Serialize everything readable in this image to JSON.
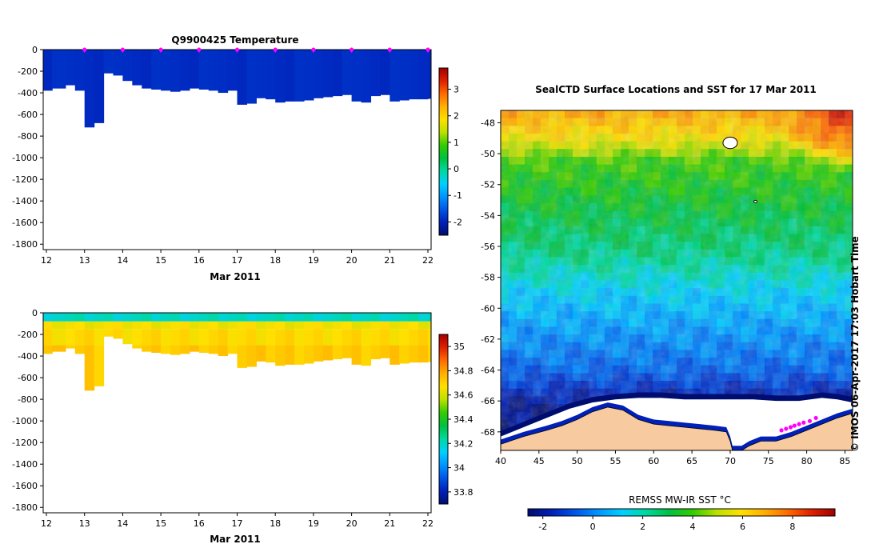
{
  "colors": {
    "ramp": [
      "#000d70",
      "#0020b8",
      "#0055e8",
      "#0095ff",
      "#00d0ff",
      "#00d8a0",
      "#00c040",
      "#33cc00",
      "#bbe000",
      "#ffe000",
      "#ffb000",
      "#ff6a00",
      "#e02000",
      "#a00000"
    ],
    "land": "#f7caa0",
    "ice": "#ffffff",
    "axis": "#000000",
    "marker": "#ff00ff"
  },
  "chart_data": [
    {
      "id": "temperature",
      "type": "heatmap",
      "title": "Q9900425  Temperature",
      "xlabel": "Mar 2011",
      "ylabel": "",
      "xlim": [
        12,
        22
      ],
      "ylim": [
        -1850,
        0
      ],
      "x_ticks": [
        "12",
        "13",
        "14",
        "15",
        "16",
        "17",
        "18",
        "19",
        "20",
        "21",
        "22"
      ],
      "y_ticks": [
        "0",
        "-200",
        "-400",
        "-600",
        "-800",
        "-1000",
        "-1200",
        "-1400",
        "-1600",
        "-1800"
      ],
      "profile_x": [
        11.85,
        12.15,
        12.5,
        12.75,
        13.0,
        13.25,
        13.5,
        13.75,
        14.0,
        14.25,
        14.5,
        14.75,
        15.0,
        15.25,
        15.5,
        15.75,
        16.0,
        16.25,
        16.5,
        16.75,
        17.0,
        17.25,
        17.5,
        17.75,
        18.0,
        18.25,
        18.5,
        18.75,
        19.0,
        19.25,
        19.5,
        19.75,
        20.0,
        20.25,
        20.5,
        20.75,
        21.0,
        21.25,
        21.5,
        21.75,
        22.0
      ],
      "profile_depth": [
        -380,
        -360,
        -330,
        -380,
        -720,
        -680,
        -220,
        -240,
        -290,
        -330,
        -360,
        -370,
        -380,
        -390,
        -380,
        -360,
        -370,
        -380,
        -400,
        -380,
        -510,
        -500,
        -450,
        -460,
        -490,
        -480,
        -480,
        -470,
        -450,
        -440,
        -430,
        -420,
        -480,
        -490,
        -430,
        -420,
        -480,
        -470,
        -460,
        -460,
        -455
      ],
      "surface_markers": [
        13,
        14,
        15,
        16,
        17,
        18,
        19,
        20,
        21,
        22
      ],
      "colorbar": {
        "ticks": [
          "3",
          "2",
          "1",
          "0",
          "-1",
          "-2"
        ],
        "range": [
          -2.5,
          3.8
        ]
      },
      "field_value": -1.9
    },
    {
      "id": "salinity",
      "type": "heatmap",
      "title": "",
      "xlabel": "Mar 2011",
      "ylabel": "",
      "xlim": [
        12,
        22
      ],
      "ylim": [
        -1850,
        0
      ],
      "x_ticks": [
        "12",
        "13",
        "14",
        "15",
        "16",
        "17",
        "18",
        "19",
        "20",
        "21",
        "22"
      ],
      "y_ticks": [
        "0",
        "-200",
        "-400",
        "-600",
        "-800",
        "-1000",
        "-1200",
        "-1400",
        "-1600",
        "-1800"
      ],
      "profile_x": [
        11.85,
        12.15,
        12.5,
        12.75,
        13.0,
        13.25,
        13.5,
        13.75,
        14.0,
        14.25,
        14.5,
        14.75,
        15.0,
        15.25,
        15.5,
        15.75,
        16.0,
        16.25,
        16.5,
        16.75,
        17.0,
        17.25,
        17.5,
        17.75,
        18.0,
        18.25,
        18.5,
        18.75,
        19.0,
        19.25,
        19.5,
        19.75,
        20.0,
        20.25,
        20.5,
        20.75,
        21.0,
        21.25,
        21.5,
        21.75,
        22.0
      ],
      "profile_depth": [
        -380,
        -360,
        -330,
        -380,
        -720,
        -680,
        -220,
        -240,
        -290,
        -330,
        -360,
        -370,
        -380,
        -390,
        -380,
        -360,
        -370,
        -380,
        -400,
        -380,
        -510,
        -500,
        -450,
        -460,
        -490,
        -480,
        -480,
        -470,
        -450,
        -440,
        -430,
        -420,
        -480,
        -490,
        -430,
        -420,
        -480,
        -470,
        -460,
        -460,
        -455
      ],
      "colorbar": {
        "ticks": [
          "35",
          "34.8",
          "34.6",
          "34.4",
          "34.2",
          "34",
          "33.8"
        ],
        "range": [
          33.7,
          35.1
        ]
      },
      "layers": [
        {
          "depth": [
            0,
            -80
          ],
          "value": 34.2
        },
        {
          "depth": [
            -80,
            -150
          ],
          "value": 34.65
        },
        {
          "depth": [
            -150,
            -300
          ],
          "value": 34.68
        },
        {
          "depth": [
            -300,
            -900
          ],
          "value": 34.72
        }
      ]
    },
    {
      "id": "sst-map",
      "type": "heatmap",
      "title": "SealCTD Surface Locations and SST for 17 Mar 2011",
      "xlabel": "",
      "ylabel": "",
      "xlim": [
        40,
        86
      ],
      "ylim": [
        -69.2,
        -47.2
      ],
      "x_ticks": [
        "40",
        "45",
        "50",
        "55",
        "60",
        "65",
        "70",
        "75",
        "80",
        "85"
      ],
      "y_ticks": [
        "-48",
        "-50",
        "-52",
        "-54",
        "-56",
        "-58",
        "-60",
        "-62",
        "-64",
        "-66",
        "-68"
      ],
      "colorbar": {
        "label": "REMSS MW-IR SST °C",
        "ticks": [
          "-2",
          "0",
          "2",
          "4",
          "6",
          "8"
        ],
        "range": [
          -2.6,
          9.7
        ]
      },
      "sst_by_lat": [
        {
          "lat": -47.2,
          "sst": 7.0
        },
        {
          "lat": -49.0,
          "sst": 5.8
        },
        {
          "lat": -50.5,
          "sst": 4.0
        },
        {
          "lat": -53.5,
          "sst": 3.2
        },
        {
          "lat": -56.5,
          "sst": 2.4
        },
        {
          "lat": -59.0,
          "sst": 1.2
        },
        {
          "lat": -61.5,
          "sst": 0.3
        },
        {
          "lat": -64.0,
          "sst": -0.5
        },
        {
          "lat": -65.5,
          "sst": -1.6
        },
        {
          "lat": -66.5,
          "sst": -2.2
        }
      ],
      "warm_corner": {
        "lon": 85,
        "lat": -47.5,
        "sst": 8.8
      },
      "seal_locations": [
        {
          "lon": 76.7,
          "lat": -67.9
        },
        {
          "lon": 77.3,
          "lat": -67.8
        },
        {
          "lon": 77.9,
          "lat": -67.7
        },
        {
          "lon": 78.4,
          "lat": -67.6
        },
        {
          "lon": 79.0,
          "lat": -67.5
        },
        {
          "lon": 79.6,
          "lat": -67.4
        },
        {
          "lon": 80.4,
          "lat": -67.3
        },
        {
          "lon": 81.2,
          "lat": -67.1
        }
      ],
      "coastline": [
        {
          "lon": 40,
          "lat": -68.8
        },
        {
          "lon": 43,
          "lat": -68.3
        },
        {
          "lon": 46,
          "lat": -67.9
        },
        {
          "lon": 48,
          "lat": -67.6
        },
        {
          "lon": 50,
          "lat": -67.2
        },
        {
          "lon": 52,
          "lat": -66.7
        },
        {
          "lon": 54,
          "lat": -66.4
        },
        {
          "lon": 56,
          "lat": -66.6
        },
        {
          "lon": 58,
          "lat": -67.2
        },
        {
          "lon": 60,
          "lat": -67.5
        },
        {
          "lon": 62,
          "lat": -67.6
        },
        {
          "lon": 64,
          "lat": -67.7
        },
        {
          "lon": 66,
          "lat": -67.8
        },
        {
          "lon": 68,
          "lat": -67.9
        },
        {
          "lon": 69.5,
          "lat": -68.0
        },
        {
          "lon": 70,
          "lat": -68.6
        },
        {
          "lon": 70.3,
          "lat": -69.2
        },
        {
          "lon": 71.5,
          "lat": -69.2
        },
        {
          "lon": 72.5,
          "lat": -68.9
        },
        {
          "lon": 74,
          "lat": -68.6
        },
        {
          "lon": 76,
          "lat": -68.6
        },
        {
          "lon": 78,
          "lat": -68.3
        },
        {
          "lon": 80,
          "lat": -67.9
        },
        {
          "lon": 82,
          "lat": -67.5
        },
        {
          "lon": 84,
          "lat": -67.1
        },
        {
          "lon": 86,
          "lat": -66.8
        }
      ],
      "ice_edge": [
        {
          "lon": 40,
          "lat": -68.3
        },
        {
          "lon": 43,
          "lat": -67.7
        },
        {
          "lon": 46,
          "lat": -67.1
        },
        {
          "lon": 49,
          "lat": -66.5
        },
        {
          "lon": 52,
          "lat": -66.1
        },
        {
          "lon": 55,
          "lat": -65.9
        },
        {
          "lon": 58,
          "lat": -65.8
        },
        {
          "lon": 61,
          "lat": -65.8
        },
        {
          "lon": 64,
          "lat": -65.9
        },
        {
          "lon": 67,
          "lat": -65.9
        },
        {
          "lon": 70,
          "lat": -65.9
        },
        {
          "lon": 73,
          "lat": -65.9
        },
        {
          "lon": 76,
          "lat": -66.0
        },
        {
          "lon": 79,
          "lat": -66.0
        },
        {
          "lon": 82,
          "lat": -65.8
        },
        {
          "lon": 84,
          "lat": -65.9
        },
        {
          "lon": 86,
          "lat": -66.1
        }
      ],
      "islands": [
        {
          "lon": 70.0,
          "lat": -49.3
        },
        {
          "lon": 73.3,
          "lat": -53.1
        }
      ]
    }
  ],
  "copyright": "© IMOS 06-Apr-2017 17:03 Hobart Time"
}
